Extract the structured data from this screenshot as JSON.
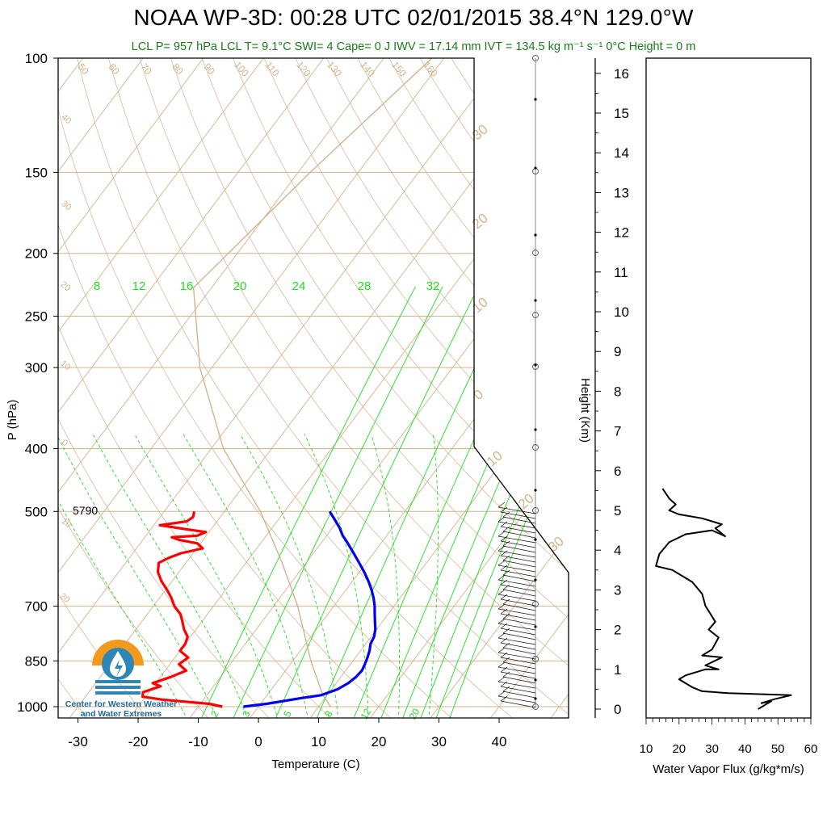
{
  "title": "NOAA WP-3D: 00:28 UTC 02/01/2015  38.4°N 129.0°W",
  "subtitle": "LCL P= 957 hPa  LCL T= 9.1°C  SWI= 4  Cape= 0 J  IWV = 17.14 mm  IVT = 134.5 kg m⁻¹ s⁻¹  0°C Height = 0 m",
  "logo": {
    "line1": "Center for Western Weather",
    "line2": "and Water Extremes"
  },
  "colors": {
    "temperature": "#ff0000",
    "dewpoint": "#0000ee",
    "mixing_ratio": "#22dd22",
    "dry_adiabat": "#d2b48c",
    "label_green": "#1a7a1a"
  },
  "height_label_5790": "5790",
  "chart_data": [
    {
      "type": "line",
      "subtype": "skew-t",
      "xlabel": "Temperature (C)",
      "ylabel": "P (hPa)",
      "x_ticks": [
        "-30",
        "-20",
        "-10",
        "0",
        "10",
        "20",
        "30",
        "40"
      ],
      "y_ticks": [
        "100",
        "150",
        "200",
        "250",
        "300",
        "400",
        "500",
        "700",
        "850",
        "1000"
      ],
      "mixing_ratio_labels_top": [
        "8",
        "12",
        "16",
        "20",
        "24",
        "28",
        "32"
      ],
      "mixing_ratio_labels_bottom": [
        "2",
        "3",
        "5",
        "8",
        "12",
        "20"
      ],
      "dry_adiabat_labels": [
        "50",
        "60",
        "70",
        "80",
        "90",
        "100",
        "110",
        "120",
        "130",
        "140",
        "150",
        "160"
      ],
      "isotherm_labels_right": [
        "30",
        "20",
        "10",
        "0",
        "10",
        "20",
        "30"
      ],
      "isotherm_labels_left": [
        "40",
        "30",
        "20",
        "10",
        "0",
        "10",
        "20"
      ],
      "series": [
        {
          "key": "dewpoint",
          "points": [
            [
              1000,
              -2.5
            ],
            [
              990,
              1
            ],
            [
              970,
              6
            ],
            [
              960,
              9
            ],
            [
              940,
              11
            ],
            [
              920,
              12
            ],
            [
              900,
              12.5
            ],
            [
              880,
              12.7
            ],
            [
              860,
              12.4
            ],
            [
              840,
              12
            ],
            [
              820,
              11.5
            ],
            [
              800,
              10.8
            ],
            [
              780,
              10.5
            ],
            [
              760,
              9.8
            ],
            [
              740,
              8.8
            ],
            [
              720,
              7.8
            ],
            [
              700,
              6.8
            ],
            [
              680,
              5.6
            ],
            [
              660,
              4.2
            ],
            [
              640,
              2.6
            ],
            [
              620,
              0.8
            ],
            [
              600,
              -1.2
            ],
            [
              580,
              -3.3
            ],
            [
              560,
              -5.5
            ],
            [
              545,
              -7.3
            ],
            [
              530,
              -8.8
            ],
            [
              515,
              -10.6
            ],
            [
              500,
              -12.5
            ]
          ]
        },
        {
          "key": "temperature",
          "points": [
            [
              1000,
              -6
            ],
            [
              990,
              -8.5
            ],
            [
              975,
              -17
            ],
            [
              965,
              -20.5
            ],
            [
              950,
              -21
            ],
            [
              930,
              -18.8
            ],
            [
              920,
              -20.5
            ],
            [
              900,
              -18.3
            ],
            [
              880,
              -16.5
            ],
            [
              860,
              -18.5
            ],
            [
              840,
              -17.8
            ],
            [
              820,
              -20
            ],
            [
              800,
              -20
            ],
            [
              780,
              -20.5
            ],
            [
              760,
              -22
            ],
            [
              740,
              -23.2
            ],
            [
              720,
              -24.5
            ],
            [
              700,
              -26.5
            ],
            [
              680,
              -28
            ],
            [
              660,
              -29.8
            ],
            [
              640,
              -31.8
            ],
            [
              620,
              -33.5
            ],
            [
              600,
              -34.5
            ],
            [
              590,
              -33.5
            ],
            [
              580,
              -32
            ],
            [
              570,
              -29
            ],
            [
              560,
              -30.5
            ],
            [
              553,
              -34
            ],
            [
              548,
              -35.5
            ],
            [
              545,
              -31.5
            ],
            [
              538,
              -30.5
            ],
            [
              532,
              -34.5
            ],
            [
              525,
              -39
            ],
            [
              518,
              -35
            ],
            [
              510,
              -34.5
            ],
            [
              500,
              -35
            ]
          ]
        },
        {
          "key": "parcel",
          "points": [
            [
              1000,
              12
            ],
            [
              957,
              9.1
            ],
            [
              850,
              3
            ],
            [
              700,
              -6
            ],
            [
              600,
              -14
            ],
            [
              500,
              -24
            ],
            [
              400,
              -38
            ],
            [
              300,
              -52
            ],
            [
              226,
              -63
            ],
            [
              150,
              -58
            ],
            [
              100,
              -52
            ]
          ]
        }
      ]
    },
    {
      "type": "line",
      "subtype": "profile",
      "xlabel": "Water Vapor Flux (g/kg*m/s)",
      "ylabel": "Height (Km)",
      "xlim": [
        10,
        60
      ],
      "ylim": [
        0,
        16
      ],
      "x_ticks": [
        "10",
        "20",
        "30",
        "40",
        "50",
        "60"
      ],
      "y_ticks": [
        "0",
        "1",
        "2",
        "3",
        "4",
        "5",
        "6",
        "7",
        "8",
        "9",
        "10",
        "11",
        "12",
        "13",
        "14",
        "15",
        "16"
      ],
      "series": [
        {
          "key": "water_vapor_flux",
          "points": [
            [
              44,
              0
            ],
            [
              48,
              0.2
            ],
            [
              45,
              0.15
            ],
            [
              49,
              0.25
            ],
            [
              54,
              0.35
            ],
            [
              35,
              0.4
            ],
            [
              27,
              0.45
            ],
            [
              24,
              0.55
            ],
            [
              20,
              0.75
            ],
            [
              22,
              0.85
            ],
            [
              28,
              1.0
            ],
            [
              32,
              1.0
            ],
            [
              28,
              1.1
            ],
            [
              33,
              1.3
            ],
            [
              27,
              1.35
            ],
            [
              30,
              1.5
            ],
            [
              32,
              1.8
            ],
            [
              29,
              2.0
            ],
            [
              31,
              2.2
            ],
            [
              28,
              2.6
            ],
            [
              27,
              2.9
            ],
            [
              24,
              3.2
            ],
            [
              18,
              3.5
            ],
            [
              13,
              3.6
            ],
            [
              14,
              3.9
            ],
            [
              17,
              4.2
            ],
            [
              22,
              4.4
            ],
            [
              30,
              4.5
            ],
            [
              34,
              4.35
            ],
            [
              31,
              4.55
            ],
            [
              33,
              4.65
            ],
            [
              27,
              4.8
            ],
            [
              20,
              4.9
            ],
            [
              17,
              5.0
            ],
            [
              19,
              5.15
            ],
            [
              17,
              5.3
            ],
            [
              15,
              5.55
            ]
          ]
        }
      ]
    }
  ]
}
